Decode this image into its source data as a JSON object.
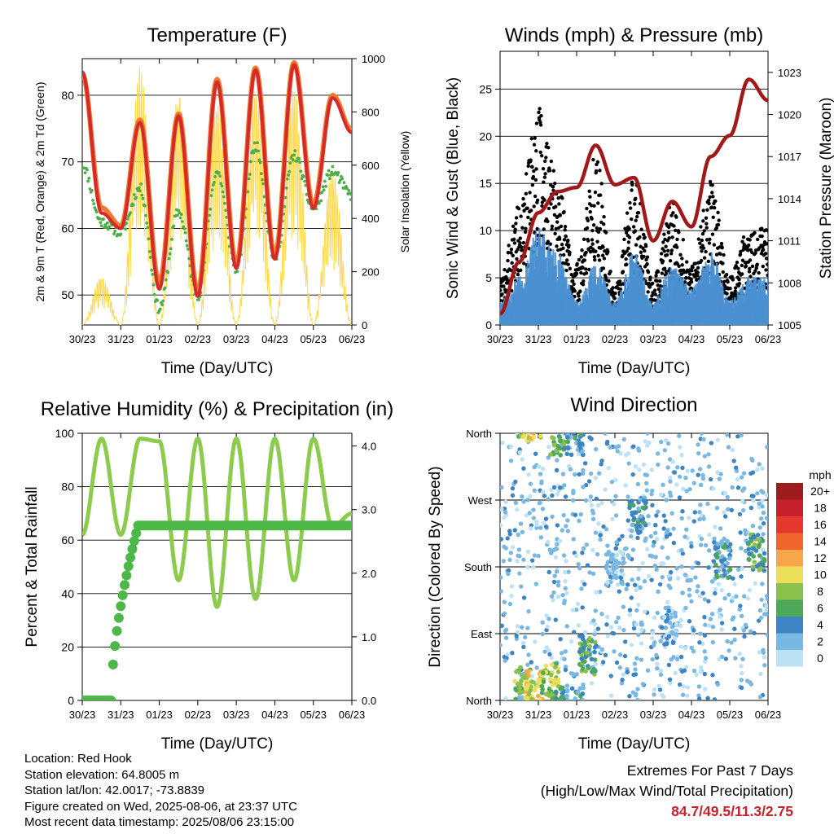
{
  "x_ticks": [
    "30/23",
    "31/23",
    "01/23",
    "02/23",
    "03/23",
    "04/23",
    "05/23",
    "06/23"
  ],
  "chart_data": [
    {
      "type": "line",
      "title": "Temperature (F)",
      "xlabel": "Time (Day/UTC)",
      "ylabel": "2m & 9m T (Red, Orange) & 2m Td (Green)",
      "ylabel_right": "Solar Insolation (Yellow)",
      "ylim": [
        45.5,
        85.5
      ],
      "yticks": [
        "50",
        "60",
        "70",
        "80"
      ],
      "ylim_right": [
        0,
        1000
      ],
      "yticks_right": [
        "0",
        "200",
        "400",
        "600",
        "800",
        "1000"
      ],
      "x_days": [
        0,
        0.5,
        1,
        1.5,
        2,
        2.5,
        3,
        3.5,
        4,
        4.5,
        5,
        5.5,
        6,
        6.5,
        7
      ],
      "series": [
        {
          "color": "#d42a2a",
          "values": [
            83.5,
            62.3,
            60.0,
            75.9,
            50.9,
            76.9,
            49.8,
            82.0,
            54.0,
            83.8,
            55.4,
            84.6,
            63.0,
            79.6,
            74.4
          ]
        },
        {
          "color": "#f07830",
          "values": [
            83.2,
            63.1,
            60.4,
            76.3,
            51.8,
            77.2,
            50.6,
            82.4,
            54.7,
            84.1,
            56.0,
            84.9,
            63.6,
            80.0,
            74.8
          ]
        },
        {
          "color": "#4cae48",
          "values": [
            69.5,
            61.0,
            59.5,
            66.0,
            48.0,
            62.5,
            50.0,
            68.5,
            54.0,
            72.5,
            55.5,
            71.0,
            63.0,
            68.5,
            65.0
          ]
        },
        {
          "color": "#ffd84a",
          "values": [
            0,
            180,
            0,
            970,
            0,
            870,
            0,
            830,
            0,
            880,
            0,
            890,
            0,
            580,
            0
          ]
        }
      ]
    },
    {
      "type": "scatter",
      "title": "Winds (mph) & Pressure (mb)",
      "xlabel": "Time (Day/UTC)",
      "ylabel": "Sonic Wind & Gust (Blue, Black)",
      "ylabel_right": "Station Pressure (Maroon)",
      "ylim": [
        0,
        29
      ],
      "yticks": [
        "0",
        "5",
        "10",
        "15",
        "20",
        "25"
      ],
      "ylim_right": [
        1005,
        1024.5
      ],
      "yticks_right": [
        "1005",
        "1008",
        "1011",
        "1014",
        "1017",
        "1020",
        "1023"
      ],
      "x_days": [
        0,
        0.5,
        1,
        1.5,
        2,
        2.5,
        3,
        3.5,
        4,
        4.5,
        5,
        5.5,
        6,
        6.5,
        7
      ],
      "series": [
        {
          "color": "#4a90d0",
          "values": [
            2,
            4,
            8,
            6,
            2,
            5,
            2,
            6,
            2,
            5,
            3,
            6,
            2,
            4,
            4
          ]
        },
        {
          "color": "#000000",
          "values": [
            4,
            10,
            18,
            12,
            5,
            14,
            3,
            12,
            4,
            10,
            5,
            12,
            4,
            8,
            8
          ]
        },
        {
          "color": "#a01818",
          "values": [
            1005.8,
            1009.5,
            1013.0,
            1014.5,
            1014.8,
            1017.8,
            1015.0,
            1015.5,
            1011.0,
            1013.8,
            1012.0,
            1017.0,
            1018.5,
            1022.5,
            1021.0
          ]
        }
      ]
    },
    {
      "type": "line",
      "title": "Relative Humidity (%) & Precipitation (in)",
      "xlabel": "Time (Day/UTC)",
      "ylabel": "Percent & Total Rainfall",
      "ylim": [
        0,
        100
      ],
      "yticks": [
        "0",
        "20",
        "40",
        "60",
        "80",
        "100"
      ],
      "ylim_right": [
        0,
        4.2
      ],
      "yticks_right": [
        "0.0",
        "1.0",
        "2.0",
        "3.0",
        "4.0"
      ],
      "x_days": [
        0,
        0.5,
        1,
        1.5,
        2,
        2.5,
        3,
        3.5,
        4,
        4.5,
        5,
        5.5,
        6,
        6.5,
        7
      ],
      "series": [
        {
          "color": "#8ccb4e",
          "values": [
            62,
            98,
            62,
            98,
            97,
            45,
            98,
            35,
            98,
            38,
            98,
            45,
            98,
            65,
            70
          ]
        },
        {
          "color": "#4db848",
          "values": [
            0,
            0,
            0,
            2.7,
            2.75,
            2.75,
            2.75,
            2.75,
            2.75,
            2.75,
            2.75,
            2.75,
            2.75,
            2.75,
            2.75
          ]
        }
      ]
    },
    {
      "type": "scatter",
      "title": "Wind Direction",
      "xlabel": "Time (Day/UTC)",
      "ylabel": "Direction (Colored By Speed)",
      "ylim": [
        0,
        360
      ],
      "yticks": [
        "North",
        "East",
        "South",
        "West",
        "North"
      ],
      "legend_title": "mph",
      "legend_labels": [
        "20+",
        "18",
        "16",
        "14",
        "12",
        "10",
        "8",
        "6",
        "4",
        "2",
        "0"
      ],
      "legend_colors": [
        "#9e1b1e",
        "#c8202a",
        "#e4382c",
        "#f0642e",
        "#f7a64a",
        "#ece058",
        "#8cc04c",
        "#4da85a",
        "#3c84c2",
        "#7ab8e4",
        "#bde2f6"
      ],
      "clusters": [
        {
          "day": 0.6,
          "dir": 20,
          "speed": 8
        },
        {
          "day": 0.9,
          "dir": 15,
          "speed": 10
        },
        {
          "day": 1.3,
          "dir": 25,
          "speed": 8
        },
        {
          "day": 1.5,
          "dir": 355,
          "speed": 6
        },
        {
          "day": 1.95,
          "dir": 355,
          "speed": 4
        },
        {
          "day": 2.3,
          "dir": 60,
          "speed": 6
        },
        {
          "day": 3.0,
          "dir": 180,
          "speed": 2
        },
        {
          "day": 3.6,
          "dir": 250,
          "speed": 4
        },
        {
          "day": 4.4,
          "dir": 100,
          "speed": 2
        },
        {
          "day": 5.8,
          "dir": 190,
          "speed": 4
        },
        {
          "day": 6.7,
          "dir": 200,
          "speed": 6
        }
      ]
    }
  ],
  "info": {
    "location": "Location: Red Hook",
    "elevation": "Station elevation: 64.8005 m",
    "latlon": "Station lat/lon: 42.0017; -73.8839",
    "created": "Figure created on Wed, 2025-08-06, at 23:37 UTC",
    "recent": "Most recent data timestamp: 2025/08/06 23:15:00"
  },
  "extremes": {
    "title": "Extremes For Past 7 Days",
    "subtitle": "(High/Low/Max Wind/Total Precipitation)",
    "values": "84.7/49.5/11.3/2.75"
  }
}
